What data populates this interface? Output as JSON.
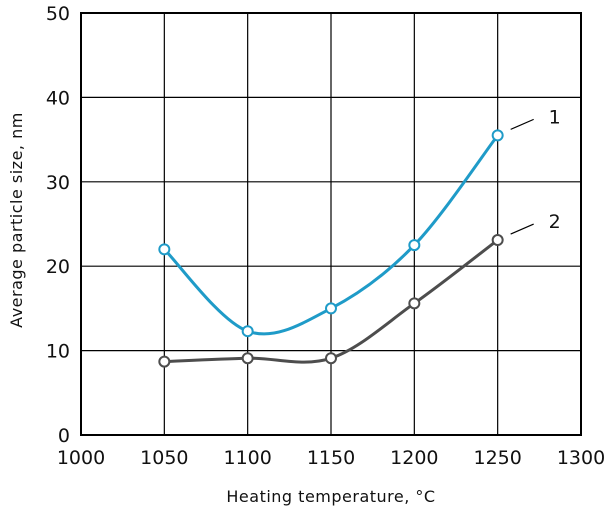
{
  "chart_data": {
    "type": "line",
    "xlabel": "Heating temperature, °C",
    "ylabel": "Average particle size, nm",
    "xlim": [
      1000,
      1300
    ],
    "ylim": [
      0,
      50
    ],
    "x_ticks": [
      1000,
      1050,
      1100,
      1150,
      1200,
      1250,
      1300
    ],
    "y_ticks": [
      0,
      10,
      20,
      30,
      40,
      50
    ],
    "grid": true,
    "series": [
      {
        "name": "1",
        "color": "#1f9bc8",
        "x": [
          1050,
          1100,
          1150,
          1200,
          1250
        ],
        "values": [
          22,
          12.3,
          15,
          22.5,
          35.5
        ]
      },
      {
        "name": "2",
        "color": "#4d4d4d",
        "x": [
          1050,
          1100,
          1150,
          1200,
          1250
        ],
        "values": [
          8.7,
          9.1,
          9.1,
          15.6,
          23.1
        ]
      }
    ]
  }
}
